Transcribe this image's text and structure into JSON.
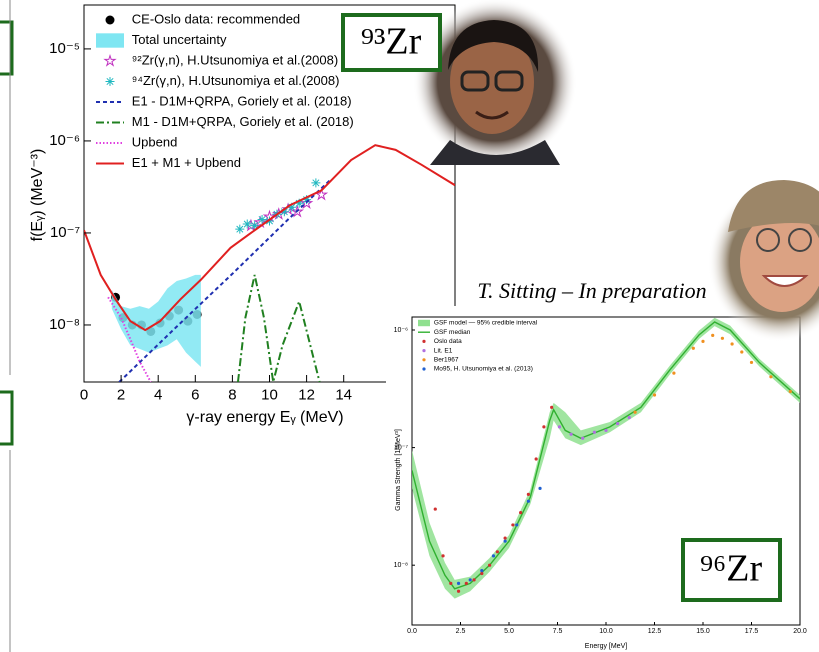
{
  "chart_data": [
    {
      "type": "line",
      "log_y": true,
      "x_label": "γ-ray energy Eᵧ (MeV)",
      "y_label": "f(Eᵧ) (MeV⁻³)",
      "xlim": [
        0,
        20
      ],
      "xticks": [
        0,
        2,
        4,
        6,
        8,
        10,
        12,
        14
      ],
      "ylim": [
        2.4e-09,
        3e-05
      ],
      "yticks": [
        {
          "value": 1e-08,
          "label": "10⁻⁸"
        },
        {
          "value": 1e-07,
          "label": "10⁻⁷"
        },
        {
          "value": 1e-06,
          "label": "10⁻⁶"
        },
        {
          "value": 1e-05,
          "label": "10⁻⁵"
        }
      ],
      "legend": "upper left",
      "annotations": [
        "⁹³Zr"
      ],
      "series": [
        {
          "name": "CE-Oslo data: recommended",
          "color": "#000000",
          "style": "points",
          "marker": "circle",
          "x": [
            1.7,
            2.1,
            2.6,
            3.1,
            3.6,
            4.1,
            4.6,
            5.1,
            5.6,
            6.1
          ],
          "values": [
            2e-08,
            1.2e-08,
            1e-08,
            1e-08,
            8.5e-09,
            1.05e-08,
            1.25e-08,
            1.45e-08,
            1.1e-08,
            1.3e-08
          ]
        },
        {
          "name": "Total uncertainty",
          "color": "#7fe6f2",
          "style": "band",
          "x": [
            1.5,
            2.0,
            2.5,
            3.0,
            3.5,
            4.0,
            4.5,
            5.0,
            5.5,
            6.0,
            6.3
          ],
          "values_low": [
            1.5e-08,
            9e-09,
            6e-09,
            5.5e-09,
            5e-09,
            5.5e-09,
            6e-09,
            7e-09,
            5e-09,
            4e-09,
            3.5e-09
          ],
          "values_high": [
            2.4e-08,
            1.6e-08,
            1.5e-08,
            1.6e-08,
            1.5e-08,
            1.8e-08,
            2.5e-08,
            3e-08,
            3.2e-08,
            3.5e-08,
            3.5e-08
          ]
        },
        {
          "name": "⁹²Zr(γ,n), H.Utsunomiya et al.(2008)",
          "color": "#c030c0",
          "style": "points",
          "marker": "star",
          "x": [
            9.0,
            9.5,
            10.0,
            10.5,
            11.0,
            11.5,
            12.0,
            12.8
          ],
          "values": [
            1.2e-07,
            1.3e-07,
            1.5e-07,
            1.6e-07,
            1.8e-07,
            1.7e-07,
            2.1e-07,
            2.6e-07
          ]
        },
        {
          "name": "⁹⁴Zr(γ,n), H.Utsunomiya et al.(2008)",
          "color": "#20b8c0",
          "style": "points",
          "marker": "asterisk",
          "x": [
            8.4,
            8.8,
            9.2,
            9.6,
            10.0,
            10.4,
            10.8,
            11.2,
            11.6,
            12.0,
            12.5
          ],
          "values": [
            1.1e-07,
            1.25e-07,
            1.2e-07,
            1.4e-07,
            1.35e-07,
            1.6e-07,
            1.7e-07,
            1.9e-07,
            2.1e-07,
            2.3e-07,
            3.5e-07
          ]
        },
        {
          "name": "E1 - D1M+QRPA, Goriely et al. (2018)",
          "color": "#2030b0",
          "style": "line",
          "dash": "dashed",
          "x": [
            1.9,
            5,
            8,
            11,
            13.3
          ],
          "values": [
            2.4e-09,
            9.6e-09,
            3.6e-08,
            1.4e-07,
            3.8e-07
          ]
        },
        {
          "name": "M1 - D1M+QRPA, Goriely et al. (2018)",
          "color": "#208020",
          "style": "line",
          "dash": "dashdot",
          "x": [
            8.3,
            8.7,
            9.2,
            9.7,
            10.2,
            10.7,
            11.6,
            12.2,
            12.7
          ],
          "values": [
            2.4e-09,
            1.2e-08,
            3.5e-08,
            1.2e-08,
            2.4e-09,
            6e-09,
            1.8e-08,
            6e-09,
            2.4e-09
          ]
        },
        {
          "name": "Upbend",
          "color": "#e040e0",
          "style": "line",
          "dash": "dotted",
          "x": [
            1.3,
            2,
            2.5,
            3,
            3.6
          ],
          "values": [
            2e-08,
            1.2e-08,
            7e-09,
            4e-09,
            2.4e-09
          ]
        },
        {
          "name": "E1 + M1 + Upbend",
          "color": "#e02020",
          "style": "line",
          "dash": "solid",
          "x": [
            0,
            0.9,
            1.7,
            2.5,
            3.3,
            4.1,
            5.2,
            6.3,
            7.9,
            9.0,
            11.1,
            12.8,
            14.4,
            15.7,
            16.8,
            18.2,
            20
          ],
          "values": [
            1.07e-07,
            3.5e-08,
            1.9e-08,
            1.1e-08,
            8.8e-09,
            1.1e-08,
            1.9e-08,
            3.1e-08,
            6.9e-08,
            1e-07,
            2e-07,
            2.9e-07,
            6.2e-07,
            9e-07,
            8e-07,
            5.5e-07,
            3.3e-07
          ]
        }
      ]
    },
    {
      "type": "line",
      "log_y": true,
      "x_label": "Energy [MeV]",
      "y_label": "Gamma Strength [1/MeV³]",
      "xlim": [
        0,
        20
      ],
      "xticks": [
        {
          "value": 0,
          "label": "0.0"
        },
        {
          "value": 2.5,
          "label": "2.5"
        },
        {
          "value": 5,
          "label": "5.0"
        },
        {
          "value": 7.5,
          "label": "7.5"
        },
        {
          "value": 10,
          "label": "10.0"
        },
        {
          "value": 12.5,
          "label": "12.5"
        },
        {
          "value": 15,
          "label": "15.0"
        },
        {
          "value": 17.5,
          "label": "17.5"
        },
        {
          "value": 20,
          "label": "20.0"
        }
      ],
      "ylim": [
        3.1e-09,
        1.29e-06
      ],
      "yticks": [
        {
          "value": 1e-08,
          "label": "10⁻⁸"
        },
        {
          "value": 1e-07,
          "label": "10⁻⁷"
        },
        {
          "value": 1e-06,
          "label": "10⁻⁶"
        }
      ],
      "legend": "upper left",
      "annotations": [
        "T. Sitting – In preparation",
        "⁹⁶Zr"
      ],
      "series": [
        {
          "name": "GSF model — 95% credible interval",
          "color": "#8fe08f",
          "style": "band",
          "x": [
            0,
            0.9,
            1.7,
            2.2,
            3.0,
            4.0,
            5.0,
            6.1,
            7.1,
            7.3,
            7.9,
            8.7,
            10.2,
            11.8,
            13.3,
            14.8,
            15.6,
            16.4,
            17.9,
            20
          ],
          "values_low": [
            4.5e-08,
            1.2e-08,
            6.3e-09,
            5.2e-09,
            6e-09,
            8.8e-09,
            1.4e-08,
            3.3e-08,
            1.2e-07,
            1.7e-07,
            1.2e-07,
            1.05e-07,
            1.35e-07,
            2e-07,
            4.2e-07,
            8.4e-07,
            1.08e-06,
            9.2e-07,
            4.9e-07,
            2.4e-07
          ],
          "values_high": [
            9.5e-08,
            2.3e-08,
            1.05e-08,
            7.5e-09,
            8e-09,
            1.15e-08,
            1.8e-08,
            4.4e-08,
            2e-07,
            2.4e-07,
            2e-07,
            1.4e-07,
            1.65e-07,
            2.4e-07,
            5e-07,
            9.9e-07,
            1.27e-06,
            1.09e-06,
            5.7e-07,
            2.8e-07
          ]
        },
        {
          "name": "GSF median",
          "color": "#30b030",
          "style": "line",
          "dash": "solid",
          "x": [
            0,
            0.9,
            1.7,
            2.2,
            3.0,
            4.0,
            5.0,
            6.1,
            7.1,
            7.3,
            7.9,
            8.7,
            10.2,
            11.8,
            13.3,
            14.8,
            15.6,
            16.4,
            17.9,
            20
          ],
          "values": [
            6.4e-08,
            1.6e-08,
            8.2e-09,
            6.3e-09,
            7e-09,
            1e-08,
            1.6e-08,
            3.8e-08,
            1.7e-07,
            2.1e-07,
            1.4e-07,
            1.2e-07,
            1.5e-07,
            2.2e-07,
            4.6e-07,
            9.1e-07,
            1.17e-06,
            1e-06,
            5.3e-07,
            2.6e-07
          ]
        },
        {
          "name": "Oslo data",
          "color": "#d03030",
          "style": "points",
          "marker": "dot",
          "x": [
            1.2,
            1.6,
            2.0,
            2.4,
            2.8,
            3.2,
            3.6,
            4.0,
            4.4,
            4.8,
            5.2,
            5.6,
            6.0,
            6.4,
            6.8,
            7.2
          ],
          "values": [
            3e-08,
            1.2e-08,
            7e-09,
            6e-09,
            7e-09,
            7.5e-09,
            8.5e-09,
            1e-08,
            1.3e-08,
            1.7e-08,
            2.2e-08,
            2.8e-08,
            4e-08,
            8e-08,
            1.5e-07,
            2.2e-07
          ]
        },
        {
          "name": "Lit. E1",
          "color": "#b070e0",
          "style": "points",
          "marker": "dot",
          "x": [
            7.6,
            8.2,
            8.8,
            9.4,
            10.0,
            10.6,
            11.2
          ],
          "values": [
            1.5e-07,
            1.3e-07,
            1.2e-07,
            1.35e-07,
            1.4e-07,
            1.6e-07,
            1.8e-07
          ]
        },
        {
          "name": "Ber1967",
          "color": "#f09020",
          "style": "points",
          "marker": "dot",
          "x": [
            11.5,
            12.5,
            13.5,
            14.5,
            15.0,
            15.5,
            16.0,
            16.5,
            17.0,
            17.5,
            18.5,
            19.5
          ],
          "values": [
            2e-07,
            2.8e-07,
            4.3e-07,
            7e-07,
            8e-07,
            9e-07,
            8.5e-07,
            7.6e-07,
            6.5e-07,
            5.3e-07,
            4e-07,
            3e-07
          ]
        },
        {
          "name": "Mo95, H. Utsunomiya et al. (2013)",
          "color": "#2060d0",
          "style": "points",
          "marker": "dot",
          "x": [
            2.4,
            3.0,
            3.6,
            4.2,
            4.8,
            5.4,
            6.0,
            6.6
          ],
          "values": [
            7e-09,
            7.5e-09,
            9e-09,
            1.2e-08,
            1.6e-08,
            2.2e-08,
            3.5e-08,
            4.5e-08
          ]
        }
      ]
    }
  ]
}
